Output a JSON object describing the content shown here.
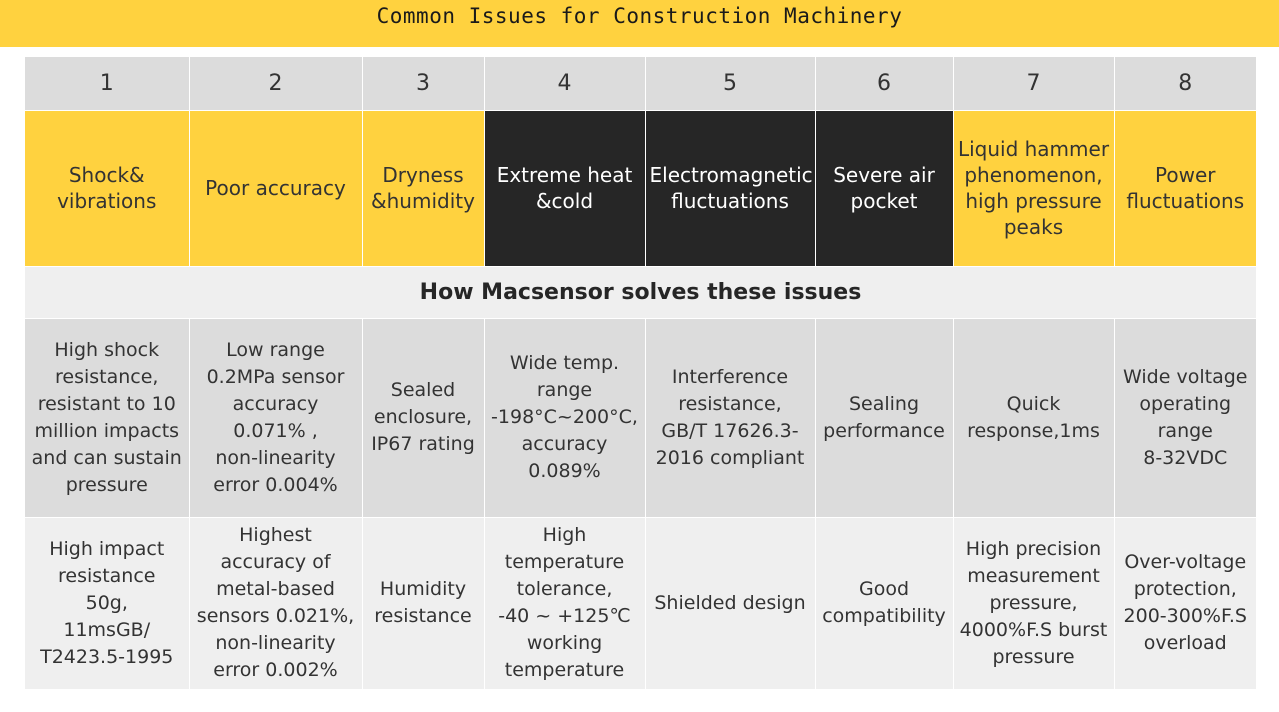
{
  "title": "Common Issues for Construction Machinery",
  "numbers": [
    "1",
    "2",
    "3",
    "4",
    "5",
    "6",
    "7",
    "8"
  ],
  "issues": [
    {
      "label": "Shock&\nvibrations",
      "theme": "yellow"
    },
    {
      "label": "Poor accuracy",
      "theme": "yellow"
    },
    {
      "label": "Dryness\n&humidity",
      "theme": "yellow"
    },
    {
      "label": "Extreme heat\n&cold",
      "theme": "dark"
    },
    {
      "label": "Electromagnetic\nfluctuations",
      "theme": "dark"
    },
    {
      "label": "Severe air\npocket",
      "theme": "dark"
    },
    {
      "label": "Liquid hammer\nphenomenon,\nhigh pressure\npeaks",
      "theme": "yellow"
    },
    {
      "label": "Power\nfluctuations",
      "theme": "yellow"
    }
  ],
  "subheading": "How Macsensor solves these issues",
  "solutions_primary": [
    "High shock\nresistance,\nresistant to 10\nmillion impacts\nand can sustain\npressure",
    "Low range\n0.2MPa sensor\naccuracy 0.071% ,\nnon-linearity\nerror 0.004%",
    "Sealed\nenclosure,\nIP67 rating",
    "Wide temp.\nrange\n-198°C~200°C,\naccuracy\n0.089%",
    "Interference\nresistance,\nGB/T 17626.3-\n2016 compliant",
    "Sealing\nperformance",
    "Quick\nresponse,1ms",
    "Wide voltage\noperating\nrange\n8-32VDC"
  ],
  "solutions_secondary": [
    "High impact\nresistance\n50g,\n11msGB/\nT2423.5-1995",
    "Highest\naccuracy of\nmetal-based\nsensors 0.021%,\nnon-linearity\nerror 0.002%",
    "Humidity\nresistance",
    "High\ntemperature\ntolerance,\n-40 ~ +125℃\nworking\ntemperature",
    "Shielded design",
    "Good\ncompatibility",
    "High precision\nmeasurement\npressure,\n4000%F.S burst\npressure",
    "Over-voltage\nprotection,\n200-300%F.S\noverload"
  ],
  "colors": {
    "accent_yellow": "#ffd23f",
    "dark_cell": "#262626",
    "gray_cell": "#dcdcdc",
    "light_cell": "#efefef"
  }
}
